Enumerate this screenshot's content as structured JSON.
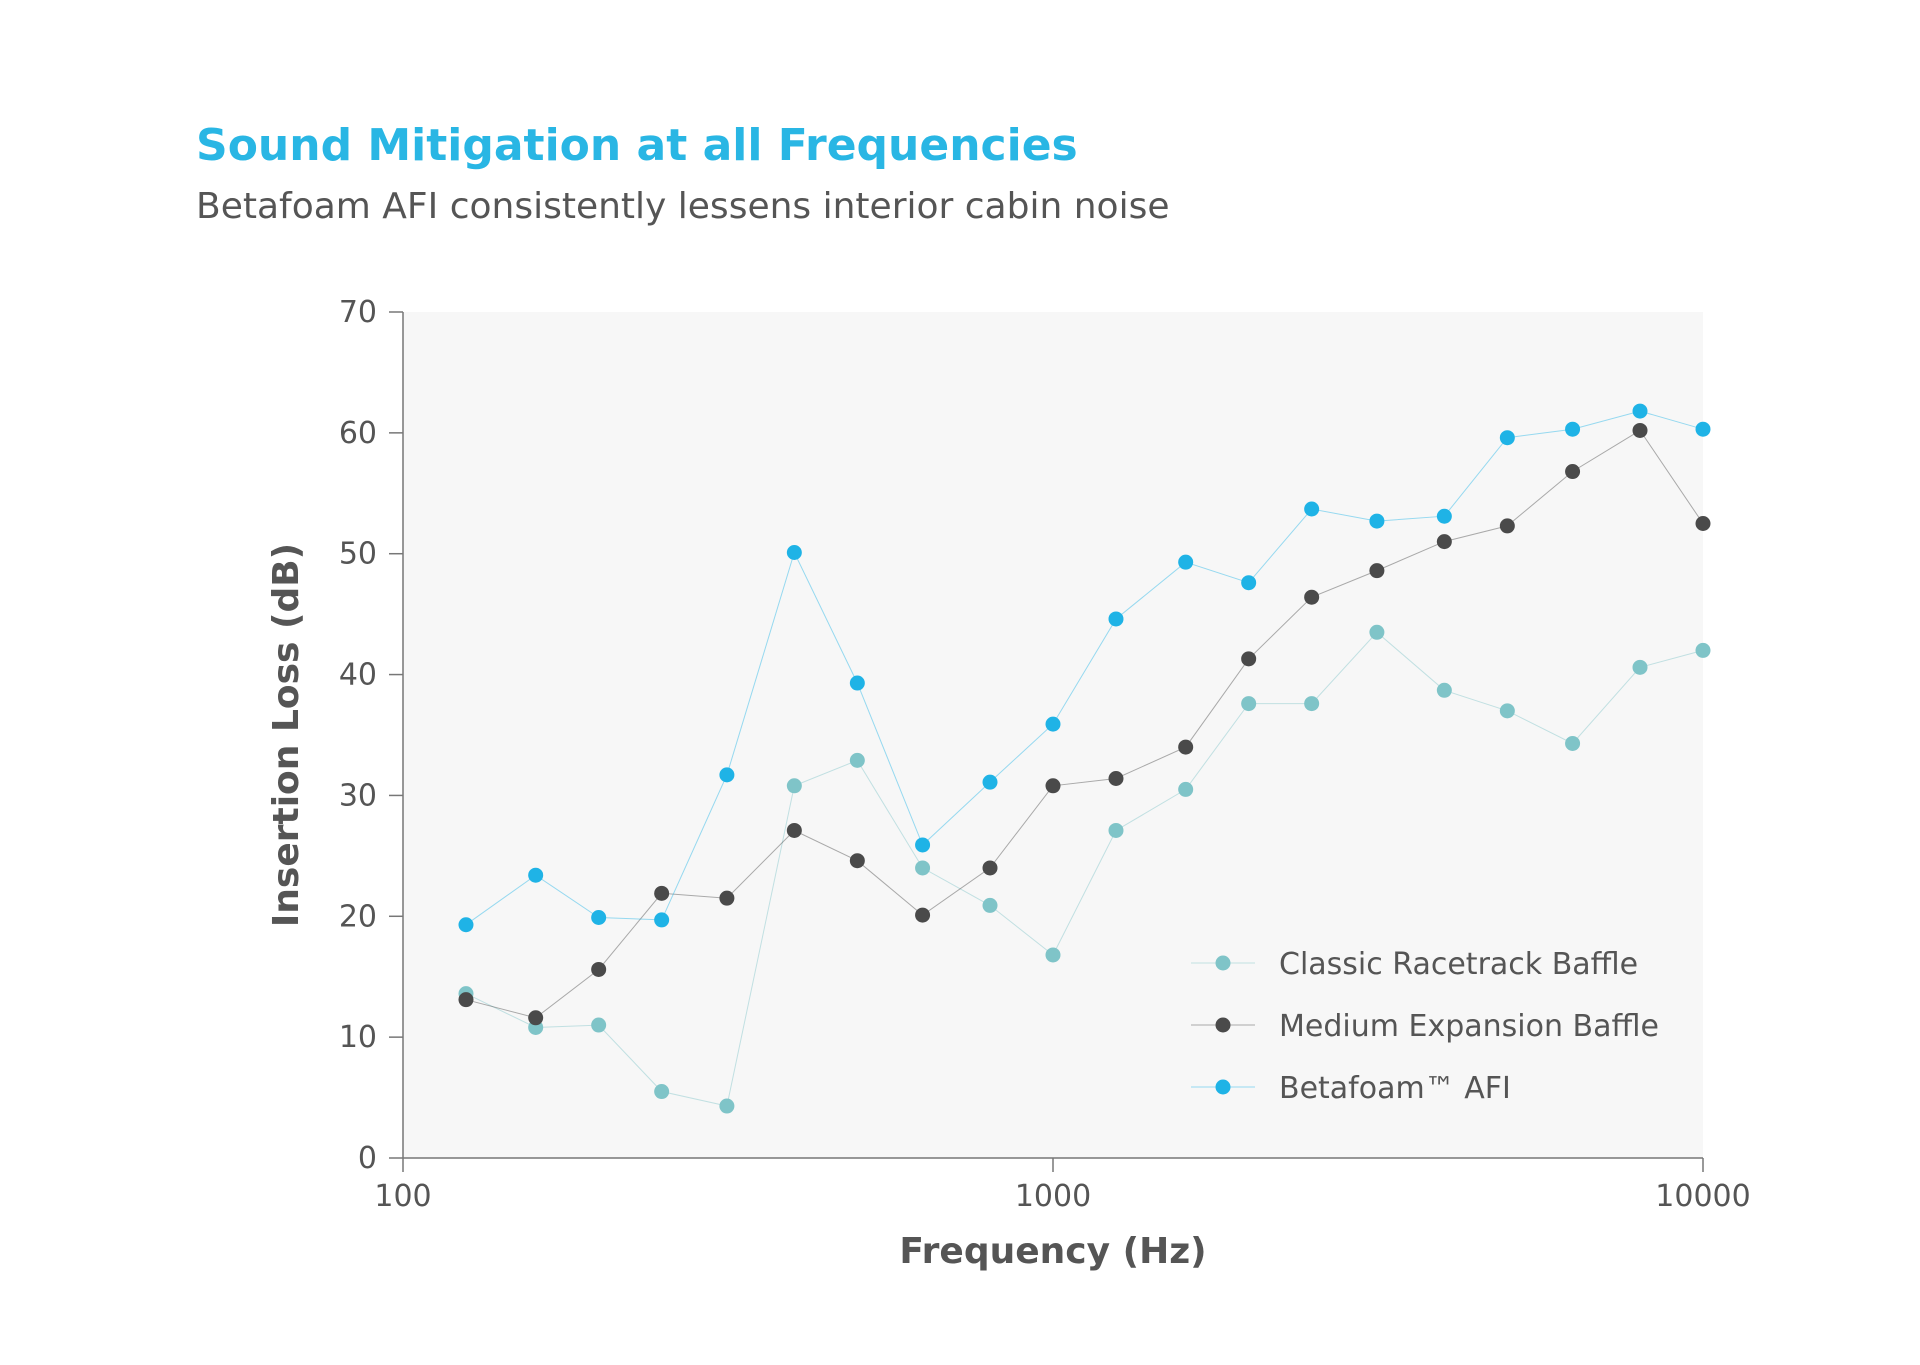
{
  "title": "Sound Mitigation at all Frequencies",
  "subtitle": "Betafoam AFI consistently lessens interior cabin noise",
  "colors": {
    "title": "#29b6e4",
    "text": "#555555",
    "plot_bg": "#f7f7f7"
  },
  "chart_data": {
    "type": "scatter",
    "xscale": "log",
    "xlabel": "Frequency (Hz)",
    "ylabel": "Insertion Loss (dB)",
    "xlim": [
      100,
      10000
    ],
    "ylim": [
      0,
      70
    ],
    "xticks": [
      "100",
      "1000",
      "10000"
    ],
    "yticks": [
      "0",
      "10",
      "20",
      "30",
      "40",
      "50",
      "60",
      "70"
    ],
    "grid": false,
    "legend_position": "bottom-right",
    "x": [
      125,
      160,
      200,
      250,
      315,
      400,
      500,
      630,
      800,
      1000,
      1250,
      1600,
      2000,
      2500,
      3150,
      4000,
      5000,
      6300,
      8000,
      10000
    ],
    "series": [
      {
        "name": "Classic Racetrack Baffle",
        "color": "#7fc4c8",
        "values": [
          13.6,
          10.8,
          11.0,
          5.5,
          4.3,
          30.8,
          32.9,
          24.0,
          20.9,
          16.8,
          27.1,
          30.5,
          37.6,
          37.6,
          43.5,
          38.7,
          37.0,
          34.3,
          40.6,
          42.0
        ]
      },
      {
        "name": "Medium Expansion Baffle",
        "color": "#4a4a4a",
        "values": [
          13.1,
          11.6,
          15.6,
          21.9,
          21.5,
          27.1,
          24.6,
          20.1,
          24.0,
          30.8,
          31.4,
          34.0,
          41.3,
          46.4,
          48.6,
          51.0,
          52.3,
          56.8,
          60.2,
          52.5
        ]
      },
      {
        "name": "Betafoam™ AFI",
        "color": "#1fb3e6",
        "values": [
          19.3,
          23.4,
          19.9,
          19.7,
          31.7,
          50.1,
          39.3,
          25.9,
          31.1,
          35.9,
          44.6,
          49.3,
          47.6,
          53.7,
          52.7,
          53.1,
          59.6,
          60.3,
          61.8,
          60.3
        ]
      }
    ]
  }
}
